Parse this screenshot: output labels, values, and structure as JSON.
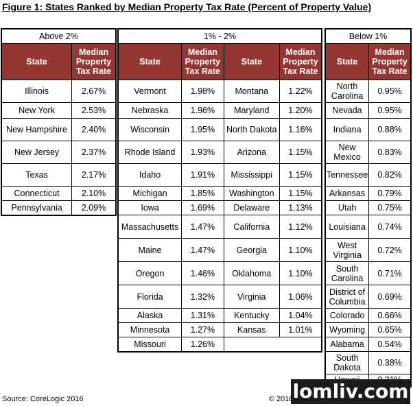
{
  "title": "Figure 1: States Ranked by Median Property Tax Rate (Percent of Property Value)",
  "columns": {
    "state": "State",
    "rate": "Median Property Tax Rate"
  },
  "groups": [
    {
      "label": "Above 2%",
      "rows": [
        {
          "state": "Illinois",
          "rate": "2.67%"
        },
        {
          "state": "New York",
          "rate": "2.53%"
        },
        {
          "state": "New Hampshire",
          "rate": "2.40%"
        },
        {
          "state": "New Jersey",
          "rate": "2.37%"
        },
        {
          "state": "Texas",
          "rate": "2.17%"
        },
        {
          "state": "Connecticut",
          "rate": "2.10%"
        },
        {
          "state": "Pennsylvania",
          "rate": "2.09%"
        }
      ]
    },
    {
      "label": "1% - 2%",
      "rows": [
        {
          "state": "Vermont",
          "rate": "1.98%"
        },
        {
          "state": "Nebraska",
          "rate": "1.96%"
        },
        {
          "state": "Wisconsin",
          "rate": "1.95%"
        },
        {
          "state": "Rhode Island",
          "rate": "1.93%"
        },
        {
          "state": "Idaho",
          "rate": "1.91%"
        },
        {
          "state": "Michigan",
          "rate": "1.85%"
        },
        {
          "state": "Iowa",
          "rate": "1.69%"
        },
        {
          "state": "Massachusetts",
          "rate": "1.47%"
        },
        {
          "state": "Maine",
          "rate": "1.47%"
        },
        {
          "state": "Oregon",
          "rate": "1.46%"
        },
        {
          "state": "Florida",
          "rate": "1.32%"
        },
        {
          "state": "Alaska",
          "rate": "1.31%"
        },
        {
          "state": "Minnesota",
          "rate": "1.27%"
        },
        {
          "state": "Missouri",
          "rate": "1.26%"
        }
      ],
      "rows_b": [
        {
          "state": "Montana",
          "rate": "1.22%"
        },
        {
          "state": "Maryland",
          "rate": "1.20%"
        },
        {
          "state": "North Dakota",
          "rate": "1.16%"
        },
        {
          "state": "Arizona",
          "rate": "1.15%"
        },
        {
          "state": "Mississippi",
          "rate": "1.15%"
        },
        {
          "state": "Washington",
          "rate": "1.15%"
        },
        {
          "state": "Delaware",
          "rate": "1.13%"
        },
        {
          "state": "California",
          "rate": "1.12%"
        },
        {
          "state": "Georgia",
          "rate": "1.10%"
        },
        {
          "state": "Oklahoma",
          "rate": "1.10%"
        },
        {
          "state": "Virginia",
          "rate": "1.06%"
        },
        {
          "state": "Kentucky",
          "rate": "1.04%"
        },
        {
          "state": "Kansas",
          "rate": "1.01%"
        }
      ]
    },
    {
      "label": "Below 1%",
      "rows": [
        {
          "state": "North Carolina",
          "rate": "0.95%"
        },
        {
          "state": "Nevada",
          "rate": "0.95%"
        },
        {
          "state": "Indiana",
          "rate": "0.88%"
        },
        {
          "state": "New Mexico",
          "rate": "0.83%"
        },
        {
          "state": "Tennessee",
          "rate": "0.82%"
        },
        {
          "state": "Arkansas",
          "rate": "0.79%"
        },
        {
          "state": "Utah",
          "rate": "0.75%"
        },
        {
          "state": "Louisiana",
          "rate": "0.74%"
        },
        {
          "state": "West Virginia",
          "rate": "0.72%"
        },
        {
          "state": "South Carolina",
          "rate": "0.71%"
        },
        {
          "state": "District of Columbia",
          "rate": "0.69%"
        },
        {
          "state": "Colorado",
          "rate": "0.66%"
        },
        {
          "state": "Wyoming",
          "rate": "0.65%"
        },
        {
          "state": "Alabama",
          "rate": "0.54%"
        },
        {
          "state": "South Dakota",
          "rate": "0.38%"
        },
        {
          "state": "Hawaii",
          "rate": "0.31%"
        }
      ]
    }
  ],
  "footer": {
    "source": "Source: CoreLogic 2016",
    "copyright": "© 2016 CoreLogic, Inc. All rights reserved."
  },
  "watermark": "lomliv.com",
  "colors": {
    "header_fill": "#943634",
    "header_text": "#ffffff"
  }
}
